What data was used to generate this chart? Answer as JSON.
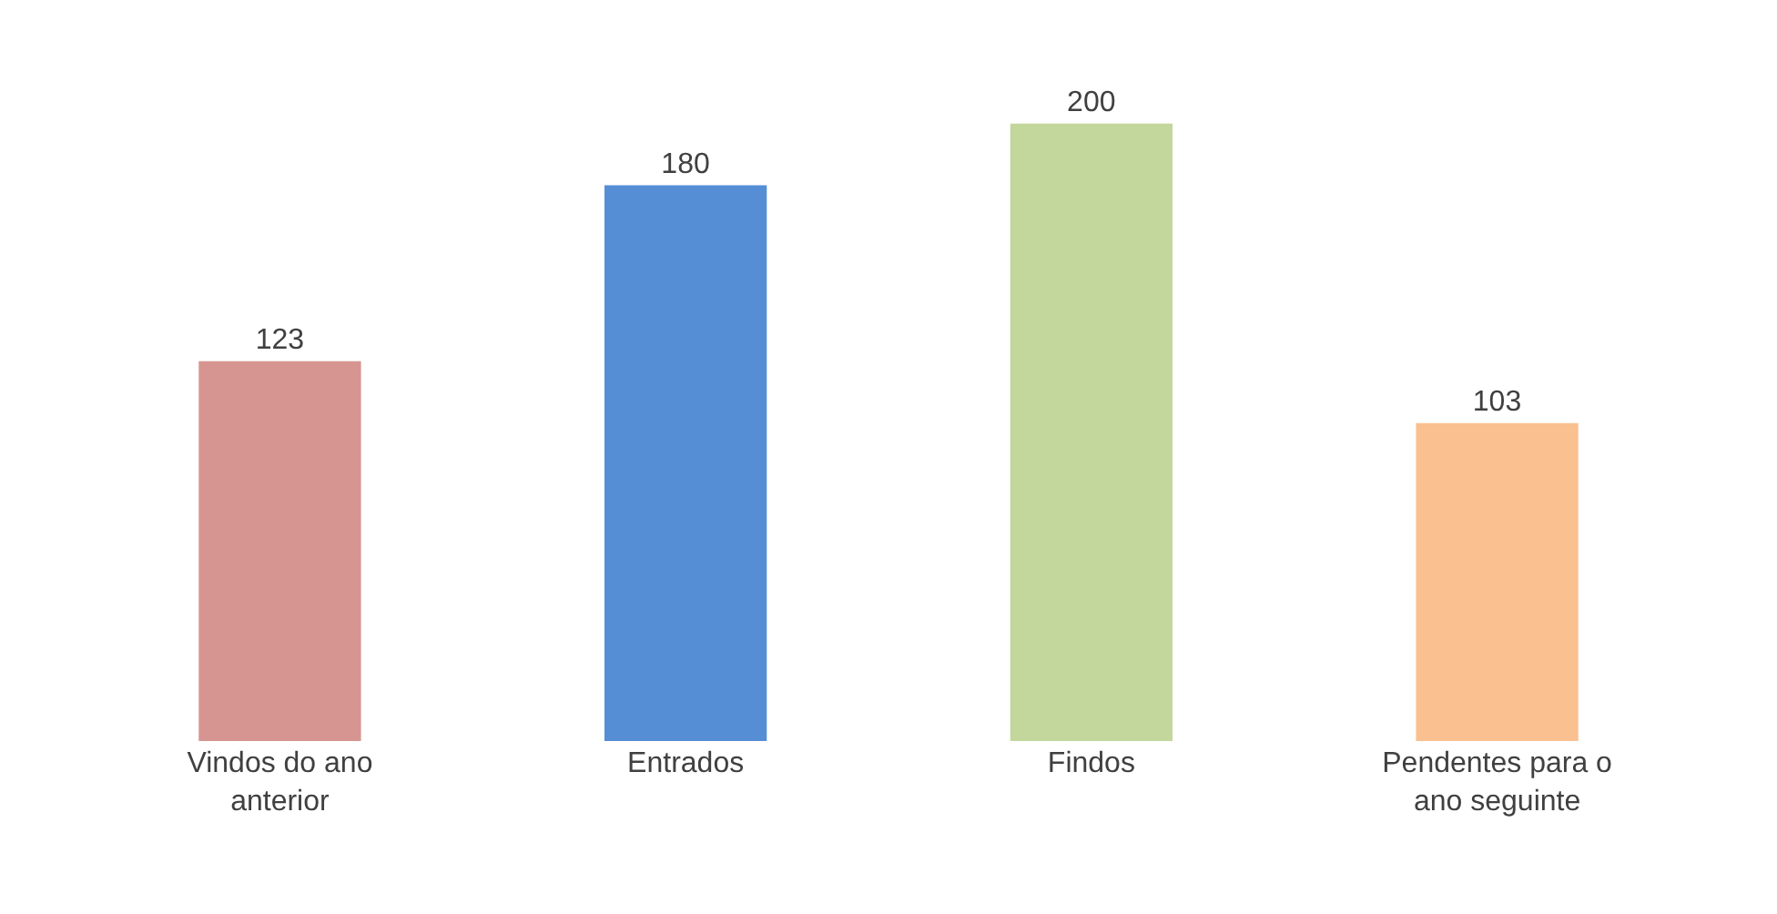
{
  "chart_data": {
    "type": "bar",
    "categories": [
      "Vindos do ano anterior",
      "Entrados",
      "Findos",
      "Pendentes para o ano seguinte"
    ],
    "values": [
      123,
      180,
      200,
      103
    ],
    "colors": [
      "#d69591",
      "#558ed5",
      "#c3d69b",
      "#fac090"
    ],
    "data_labels": true
  }
}
